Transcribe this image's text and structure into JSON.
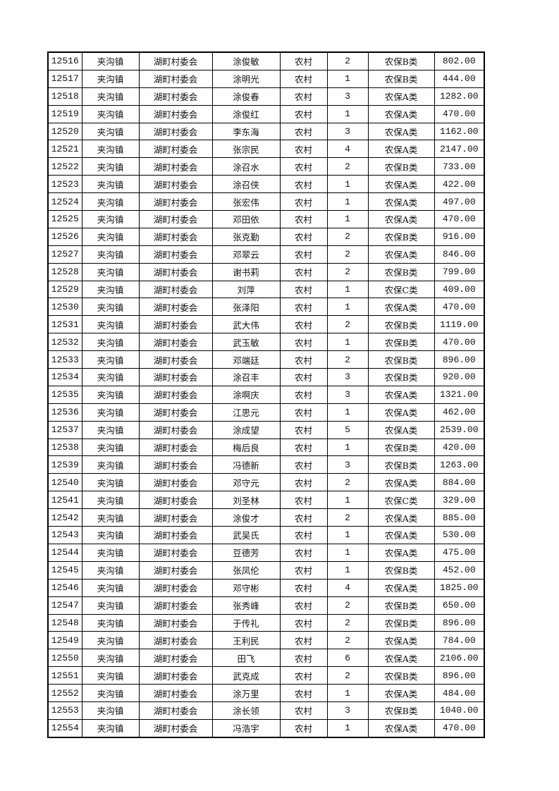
{
  "table": {
    "rows": [
      [
        "12516",
        "夹沟镇",
        "湖町村委会",
        "涂俊敏",
        "农村",
        "2",
        "农保B类",
        "802.00"
      ],
      [
        "12517",
        "夹沟镇",
        "湖町村委会",
        "涂明光",
        "农村",
        "1",
        "农保B类",
        "444.00"
      ],
      [
        "12518",
        "夹沟镇",
        "湖町村委会",
        "涂俊春",
        "农村",
        "3",
        "农保A类",
        "1282.00"
      ],
      [
        "12519",
        "夹沟镇",
        "湖町村委会",
        "涂俊红",
        "农村",
        "1",
        "农保A类",
        "470.00"
      ],
      [
        "12520",
        "夹沟镇",
        "湖町村委会",
        "李东海",
        "农村",
        "3",
        "农保A类",
        "1162.00"
      ],
      [
        "12521",
        "夹沟镇",
        "湖町村委会",
        "张宗民",
        "农村",
        "4",
        "农保A类",
        "2147.00"
      ],
      [
        "12522",
        "夹沟镇",
        "湖町村委会",
        "涂召水",
        "农村",
        "2",
        "农保B类",
        "733.00"
      ],
      [
        "12523",
        "夹沟镇",
        "湖町村委会",
        "涂召侠",
        "农村",
        "1",
        "农保A类",
        "422.00"
      ],
      [
        "12524",
        "夹沟镇",
        "湖町村委会",
        "张宏伟",
        "农村",
        "1",
        "农保A类",
        "497.00"
      ],
      [
        "12525",
        "夹沟镇",
        "湖町村委会",
        "邓田依",
        "农村",
        "1",
        "农保A类",
        "470.00"
      ],
      [
        "12526",
        "夹沟镇",
        "湖町村委会",
        "张克勤",
        "农村",
        "2",
        "农保B类",
        "916.00"
      ],
      [
        "12527",
        "夹沟镇",
        "湖町村委会",
        "邓翠云",
        "农村",
        "2",
        "农保A类",
        "846.00"
      ],
      [
        "12528",
        "夹沟镇",
        "湖町村委会",
        "谢书莉",
        "农村",
        "2",
        "农保B类",
        "799.00"
      ],
      [
        "12529",
        "夹沟镇",
        "湖町村委会",
        "刘萍",
        "农村",
        "1",
        "农保C类",
        "409.00"
      ],
      [
        "12530",
        "夹沟镇",
        "湖町村委会",
        "张泽阳",
        "农村",
        "1",
        "农保A类",
        "470.00"
      ],
      [
        "12531",
        "夹沟镇",
        "湖町村委会",
        "武大伟",
        "农村",
        "2",
        "农保B类",
        "1119.00"
      ],
      [
        "12532",
        "夹沟镇",
        "湖町村委会",
        "武玉敏",
        "农村",
        "1",
        "农保B类",
        "470.00"
      ],
      [
        "12533",
        "夹沟镇",
        "湖町村委会",
        "邓端廷",
        "农村",
        "2",
        "农保B类",
        "896.00"
      ],
      [
        "12534",
        "夹沟镇",
        "湖町村委会",
        "涂召丰",
        "农村",
        "3",
        "农保B类",
        "920.00"
      ],
      [
        "12535",
        "夹沟镇",
        "湖町村委会",
        "涂啊庆",
        "农村",
        "3",
        "农保A类",
        "1321.00"
      ],
      [
        "12536",
        "夹沟镇",
        "湖町村委会",
        "江思元",
        "农村",
        "1",
        "农保A类",
        "462.00"
      ],
      [
        "12537",
        "夹沟镇",
        "湖町村委会",
        "涂成望",
        "农村",
        "5",
        "农保A类",
        "2539.00"
      ],
      [
        "12538",
        "夹沟镇",
        "湖町村委会",
        "梅后良",
        "农村",
        "1",
        "农保B类",
        "420.00"
      ],
      [
        "12539",
        "夹沟镇",
        "湖町村委会",
        "冯德新",
        "农村",
        "3",
        "农保B类",
        "1263.00"
      ],
      [
        "12540",
        "夹沟镇",
        "湖町村委会",
        "邓守元",
        "农村",
        "2",
        "农保A类",
        "884.00"
      ],
      [
        "12541",
        "夹沟镇",
        "湖町村委会",
        "刘圣林",
        "农村",
        "1",
        "农保C类",
        "329.00"
      ],
      [
        "12542",
        "夹沟镇",
        "湖町村委会",
        "涂俊才",
        "农村",
        "2",
        "农保A类",
        "885.00"
      ],
      [
        "12543",
        "夹沟镇",
        "湖町村委会",
        "武吴氏",
        "农村",
        "1",
        "农保A类",
        "530.00"
      ],
      [
        "12544",
        "夹沟镇",
        "湖町村委会",
        "豆德芳",
        "农村",
        "1",
        "农保A类",
        "475.00"
      ],
      [
        "12545",
        "夹沟镇",
        "湖町村委会",
        "张凤伦",
        "农村",
        "1",
        "农保B类",
        "452.00"
      ],
      [
        "12546",
        "夹沟镇",
        "湖町村委会",
        "邓守彬",
        "农村",
        "4",
        "农保A类",
        "1825.00"
      ],
      [
        "12547",
        "夹沟镇",
        "湖町村委会",
        "张秀峰",
        "农村",
        "2",
        "农保B类",
        "650.00"
      ],
      [
        "12548",
        "夹沟镇",
        "湖町村委会",
        "于传礼",
        "农村",
        "2",
        "农保B类",
        "896.00"
      ],
      [
        "12549",
        "夹沟镇",
        "湖町村委会",
        "王利民",
        "农村",
        "2",
        "农保A类",
        "784.00"
      ],
      [
        "12550",
        "夹沟镇",
        "湖町村委会",
        "田飞",
        "农村",
        "6",
        "农保A类",
        "2106.00"
      ],
      [
        "12551",
        "夹沟镇",
        "湖町村委会",
        "武克成",
        "农村",
        "2",
        "农保B类",
        "896.00"
      ],
      [
        "12552",
        "夹沟镇",
        "湖町村委会",
        "涂万里",
        "农村",
        "1",
        "农保A类",
        "484.00"
      ],
      [
        "12553",
        "夹沟镇",
        "湖町村委会",
        "涂长领",
        "农村",
        "3",
        "农保B类",
        "1040.00"
      ],
      [
        "12554",
        "夹沟镇",
        "湖町村委会",
        "冯浩宇",
        "农村",
        "1",
        "农保A类",
        "470.00"
      ]
    ]
  }
}
